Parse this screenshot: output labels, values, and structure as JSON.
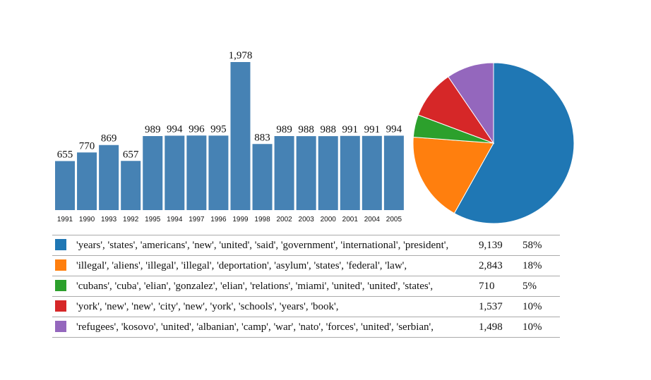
{
  "chart_data": [
    {
      "type": "bar",
      "categories": [
        "1991",
        "1990",
        "1993",
        "1992",
        "1995",
        "1994",
        "1997",
        "1996",
        "1999",
        "1998",
        "2002",
        "2003",
        "2000",
        "2001",
        "2004",
        "2005"
      ],
      "values": [
        655,
        770,
        869,
        657,
        989,
        994,
        996,
        995,
        1978,
        883,
        989,
        988,
        988,
        991,
        991,
        994
      ],
      "value_labels": [
        "655",
        "770",
        "869",
        "657",
        "989",
        "994",
        "996",
        "995",
        "1,978",
        "883",
        "989",
        "988",
        "988",
        "991",
        "991",
        "994"
      ],
      "color": "#4682b4",
      "ylim": [
        0,
        1978
      ],
      "grid": false
    },
    {
      "type": "pie",
      "labels": [
        "'years', 'states', 'americans', 'new', 'united', 'said', 'government', 'international', 'president',",
        "'illegal', 'aliens', 'illegal', 'illegal', 'deportation', 'asylum', 'states', 'federal', 'law',",
        "'cubans', 'cuba', 'elian', 'gonzalez', 'elian', 'relations', 'miami', 'united', 'united', 'states',",
        "'york', 'new', 'new', 'city', 'new', 'york', 'schools', 'years', 'book',",
        "'refugees', 'kosovo', 'united', 'albanian', 'camp', 'war', 'nato', 'forces', 'united', 'serbian',"
      ],
      "values": [
        9139,
        2843,
        710,
        1537,
        1498
      ],
      "value_labels": [
        "9,139",
        "2,843",
        "710",
        "1,537",
        "1,498"
      ],
      "percent_labels": [
        "58%",
        "18%",
        "5%",
        "10%",
        "10%"
      ],
      "colors": [
        "#1f77b4",
        "#ff7f0e",
        "#2ca02c",
        "#d62728",
        "#9467bd"
      ]
    }
  ]
}
